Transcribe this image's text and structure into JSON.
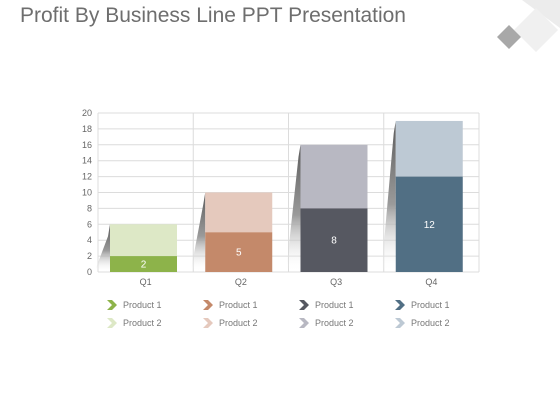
{
  "title": "Profit By Business Line PPT Presentation",
  "chart_data": {
    "type": "bar",
    "stacked": true,
    "categories": [
      "Q1",
      "Q2",
      "Q3",
      "Q4"
    ],
    "y_ticks": [
      "0",
      "2",
      "4",
      "6",
      "8",
      "10",
      "12",
      "14",
      "16",
      "18",
      "20"
    ],
    "ylim": [
      0,
      20
    ],
    "grid": true,
    "series": [
      {
        "name": "Product 1",
        "values": [
          2,
          5,
          8,
          12
        ],
        "labels": [
          "2",
          "5",
          "8",
          "12"
        ]
      },
      {
        "name": "Product 2",
        "values": [
          4,
          5,
          8,
          7
        ]
      }
    ],
    "colors": {
      "product1": [
        "#8db34a",
        "#c4896a",
        "#565861",
        "#516f84"
      ],
      "product2": [
        "#dde8c6",
        "#e5c9bd",
        "#b8b8c2",
        "#bdc9d4"
      ]
    }
  },
  "legend": {
    "groups": [
      {
        "p1": "Product 1",
        "p2": "Product 2"
      },
      {
        "p1": "Product 1",
        "p2": "Product 2"
      },
      {
        "p1": "Product 1",
        "p2": "Product 2"
      },
      {
        "p1": "Product 1",
        "p2": "Product 2"
      }
    ]
  }
}
